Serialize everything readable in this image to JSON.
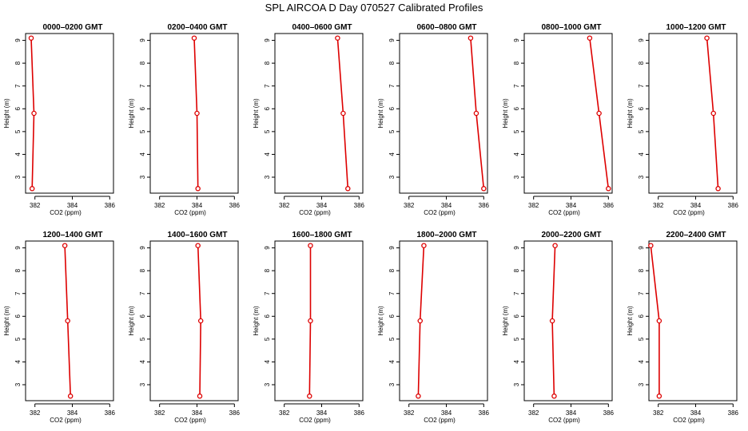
{
  "title": "SPL AIRCOA D  Day 070527  Calibrated Profiles",
  "colors": {
    "series": "#dd0000",
    "axis": "#000000"
  },
  "chart_data": [
    {
      "type": "line",
      "title": "0000–0200 GMT",
      "xlabel": "CO2 (ppm)",
      "ylabel": "Height (m)",
      "xlim": [
        381.5,
        386.2
      ],
      "ylim": [
        2.3,
        9.3
      ],
      "xticks": [
        382,
        384,
        386
      ],
      "yticks": [
        3,
        4,
        5,
        6,
        7,
        8,
        9
      ],
      "x": [
        381.8,
        381.95,
        381.85
      ],
      "y": [
        9.1,
        5.8,
        2.5
      ]
    },
    {
      "type": "line",
      "title": "0200–0400 GMT",
      "xlabel": "CO2 (ppm)",
      "ylabel": "Height (m)",
      "xlim": [
        381.5,
        386.2
      ],
      "ylim": [
        2.3,
        9.3
      ],
      "xticks": [
        382,
        384,
        386
      ],
      "yticks": [
        3,
        4,
        5,
        6,
        7,
        8,
        9
      ],
      "x": [
        383.85,
        384.0,
        384.05
      ],
      "y": [
        9.1,
        5.8,
        2.5
      ]
    },
    {
      "type": "line",
      "title": "0400–0600 GMT",
      "xlabel": "CO2 (ppm)",
      "ylabel": "Height (m)",
      "xlim": [
        381.5,
        386.2
      ],
      "ylim": [
        2.3,
        9.3
      ],
      "xticks": [
        382,
        384,
        386
      ],
      "yticks": [
        3,
        4,
        5,
        6,
        7,
        8,
        9
      ],
      "x": [
        384.85,
        385.15,
        385.4
      ],
      "y": [
        9.1,
        5.8,
        2.5
      ]
    },
    {
      "type": "line",
      "title": "0600–0800 GMT",
      "xlabel": "CO2 (ppm)",
      "ylabel": "Height (m)",
      "xlim": [
        381.5,
        386.2
      ],
      "ylim": [
        2.3,
        9.3
      ],
      "xticks": [
        382,
        384,
        386
      ],
      "yticks": [
        3,
        4,
        5,
        6,
        7,
        8,
        9
      ],
      "x": [
        385.3,
        385.6,
        386.0
      ],
      "y": [
        9.1,
        5.8,
        2.5
      ]
    },
    {
      "type": "line",
      "title": "0800–1000 GMT",
      "xlabel": "CO2 (ppm)",
      "ylabel": "Height (m)",
      "xlim": [
        381.5,
        386.2
      ],
      "ylim": [
        2.3,
        9.3
      ],
      "xticks": [
        382,
        384,
        386
      ],
      "yticks": [
        3,
        4,
        5,
        6,
        7,
        8,
        9
      ],
      "x": [
        385.0,
        385.5,
        386.0
      ],
      "y": [
        9.1,
        5.8,
        2.5
      ]
    },
    {
      "type": "line",
      "title": "1000–1200 GMT",
      "xlabel": "CO2 (ppm)",
      "ylabel": "Height (m)",
      "xlim": [
        381.5,
        386.2
      ],
      "ylim": [
        2.3,
        9.3
      ],
      "xticks": [
        382,
        384,
        386
      ],
      "yticks": [
        3,
        4,
        5,
        6,
        7,
        8,
        9
      ],
      "x": [
        384.6,
        384.95,
        385.2
      ],
      "y": [
        9.1,
        5.8,
        2.5
      ]
    },
    {
      "type": "line",
      "title": "1200–1400 GMT",
      "xlabel": "CO2 (ppm)",
      "ylabel": "Height (m)",
      "xlim": [
        381.5,
        386.2
      ],
      "ylim": [
        2.3,
        9.3
      ],
      "xticks": [
        382,
        384,
        386
      ],
      "yticks": [
        3,
        4,
        5,
        6,
        7,
        8,
        9
      ],
      "x": [
        383.6,
        383.75,
        383.9
      ],
      "y": [
        9.1,
        5.8,
        2.5
      ]
    },
    {
      "type": "line",
      "title": "1400–1600 GMT",
      "xlabel": "CO2 (ppm)",
      "ylabel": "Height (m)",
      "xlim": [
        381.5,
        386.2
      ],
      "ylim": [
        2.3,
        9.3
      ],
      "xticks": [
        382,
        384,
        386
      ],
      "yticks": [
        3,
        4,
        5,
        6,
        7,
        8,
        9
      ],
      "x": [
        384.05,
        384.2,
        384.15
      ],
      "y": [
        9.1,
        5.8,
        2.5
      ]
    },
    {
      "type": "line",
      "title": "1600–1800 GMT",
      "xlabel": "CO2 (ppm)",
      "ylabel": "Height (m)",
      "xlim": [
        381.5,
        386.2
      ],
      "ylim": [
        2.3,
        9.3
      ],
      "xticks": [
        382,
        384,
        386
      ],
      "yticks": [
        3,
        4,
        5,
        6,
        7,
        8,
        9
      ],
      "x": [
        383.4,
        383.4,
        383.35
      ],
      "y": [
        9.1,
        5.8,
        2.5
      ]
    },
    {
      "type": "line",
      "title": "1800–2000 GMT",
      "xlabel": "CO2 (ppm)",
      "ylabel": "Height (m)",
      "xlim": [
        381.5,
        386.2
      ],
      "ylim": [
        2.3,
        9.3
      ],
      "xticks": [
        382,
        384,
        386
      ],
      "yticks": [
        3,
        4,
        5,
        6,
        7,
        8,
        9
      ],
      "x": [
        382.8,
        382.6,
        382.5
      ],
      "y": [
        9.1,
        5.8,
        2.5
      ]
    },
    {
      "type": "line",
      "title": "2000–2200 GMT",
      "xlabel": "CO2 (ppm)",
      "ylabel": "Height (m)",
      "xlim": [
        381.5,
        386.2
      ],
      "ylim": [
        2.3,
        9.3
      ],
      "xticks": [
        382,
        384,
        386
      ],
      "yticks": [
        3,
        4,
        5,
        6,
        7,
        8,
        9
      ],
      "x": [
        383.15,
        383.0,
        383.1
      ],
      "y": [
        9.1,
        5.8,
        2.5
      ]
    },
    {
      "type": "line",
      "title": "2200–2400 GMT",
      "xlabel": "CO2 (ppm)",
      "ylabel": "Height (m)",
      "xlim": [
        381.5,
        386.2
      ],
      "ylim": [
        2.3,
        9.3
      ],
      "xticks": [
        382,
        384,
        386
      ],
      "yticks": [
        3,
        4,
        5,
        6,
        7,
        8,
        9
      ],
      "x": [
        381.6,
        382.05,
        382.05
      ],
      "y": [
        9.1,
        5.8,
        2.5
      ]
    }
  ]
}
